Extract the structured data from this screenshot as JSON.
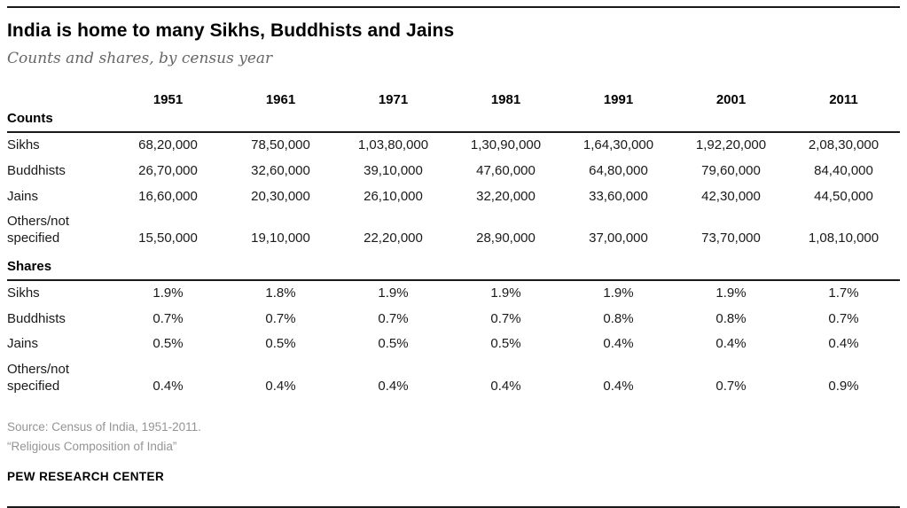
{
  "header": {
    "title": "India is home to many Sikhs, Buddhists and Jains",
    "subtitle": "Counts and shares, by census year"
  },
  "table": {
    "years": [
      "1951",
      "1961",
      "1971",
      "1981",
      "1991",
      "2001",
      "2011"
    ],
    "sections": [
      {
        "label": "Counts",
        "rows": [
          {
            "label": "Sikhs",
            "values": [
              "68,20,000",
              "78,50,000",
              "1,03,80,000",
              "1,30,90,000",
              "1,64,30,000",
              "1,92,20,000",
              "2,08,30,000"
            ]
          },
          {
            "label": "Buddhists",
            "values": [
              "26,70,000",
              "32,60,000",
              "39,10,000",
              "47,60,000",
              "64,80,000",
              "79,60,000",
              "84,40,000"
            ]
          },
          {
            "label": "Jains",
            "values": [
              "16,60,000",
              "20,30,000",
              "26,10,000",
              "32,20,000",
              "33,60,000",
              "42,30,000",
              "44,50,000"
            ]
          },
          {
            "label": "Others/not specified",
            "values": [
              "15,50,000",
              "19,10,000",
              "22,20,000",
              "28,90,000",
              "37,00,000",
              "73,70,000",
              "1,08,10,000"
            ]
          }
        ]
      },
      {
        "label": "Shares",
        "rows": [
          {
            "label": "Sikhs",
            "values": [
              "1.9%",
              "1.8%",
              "1.9%",
              "1.9%",
              "1.9%",
              "1.9%",
              "1.7%"
            ]
          },
          {
            "label": "Buddhists",
            "values": [
              "0.7%",
              "0.7%",
              "0.7%",
              "0.7%",
              "0.8%",
              "0.8%",
              "0.7%"
            ]
          },
          {
            "label": "Jains",
            "values": [
              "0.5%",
              "0.5%",
              "0.5%",
              "0.5%",
              "0.4%",
              "0.4%",
              "0.4%"
            ]
          },
          {
            "label": "Others/not specified",
            "values": [
              "0.4%",
              "0.4%",
              "0.4%",
              "0.4%",
              "0.4%",
              "0.7%",
              "0.9%"
            ]
          }
        ]
      }
    ]
  },
  "footer": {
    "source_line1": "Source: Census of India, 1951-2011.",
    "source_line2": "“Religious Composition of India”",
    "brand": "PEW RESEARCH CENTER"
  },
  "colors": {
    "text_black": "#000000",
    "subtitle_gray": "#666666",
    "source_gray": "#949494",
    "rule_black": "#1a1a1a"
  },
  "chart_data": {
    "type": "table",
    "title": "India is home to many Sikhs, Buddhists and Jains",
    "subtitle": "Counts and shares, by census year",
    "categories": [
      1951,
      1961,
      1971,
      1981,
      1991,
      2001,
      2011
    ],
    "sections": [
      {
        "name": "Counts",
        "series": [
          {
            "name": "Sikhs",
            "values": [
              6820000,
              7850000,
              10380000,
              13090000,
              16430000,
              19220000,
              20830000
            ]
          },
          {
            "name": "Buddhists",
            "values": [
              2670000,
              3260000,
              3910000,
              4760000,
              6480000,
              7960000,
              8440000
            ]
          },
          {
            "name": "Jains",
            "values": [
              1660000,
              2030000,
              2610000,
              3220000,
              3360000,
              4230000,
              4450000
            ]
          },
          {
            "name": "Others/not specified",
            "values": [
              1550000,
              1910000,
              2220000,
              2890000,
              3700000,
              7370000,
              10810000
            ]
          }
        ],
        "number_format": "Indian digit grouping (lakhs/crores)"
      },
      {
        "name": "Shares",
        "series": [
          {
            "name": "Sikhs",
            "values": [
              1.9,
              1.8,
              1.9,
              1.9,
              1.9,
              1.9,
              1.7
            ]
          },
          {
            "name": "Buddhists",
            "values": [
              0.7,
              0.7,
              0.7,
              0.7,
              0.8,
              0.8,
              0.7
            ]
          },
          {
            "name": "Jains",
            "values": [
              0.5,
              0.5,
              0.5,
              0.5,
              0.4,
              0.4,
              0.4
            ]
          },
          {
            "name": "Others/not specified",
            "values": [
              0.4,
              0.4,
              0.4,
              0.4,
              0.4,
              0.7,
              0.9
            ]
          }
        ],
        "unit": "%"
      }
    ],
    "source": "Census of India, 1951-2011. “Religious Composition of India”"
  }
}
